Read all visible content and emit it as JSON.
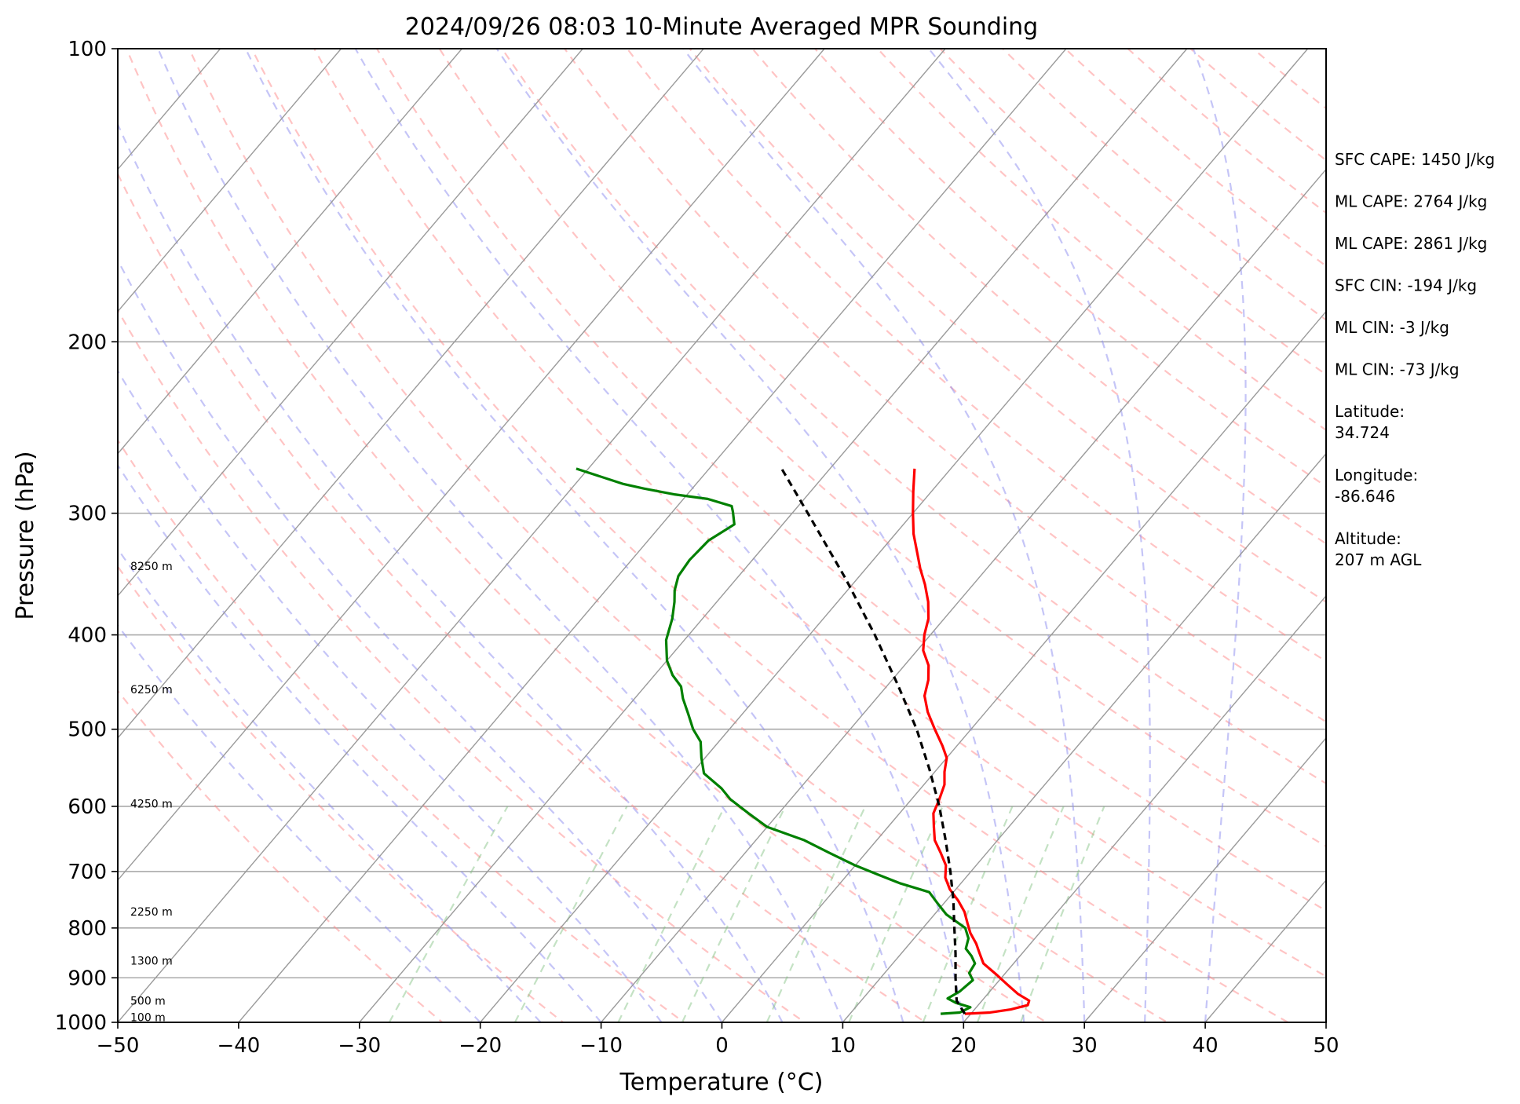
{
  "chart_data": {
    "type": "line",
    "subtype": "skew-T log-P",
    "title": "2024/09/26 08:03 10-Minute Averaged MPR Sounding",
    "xlabel": "Temperature (°C)",
    "ylabel": "Pressure (hPa)",
    "xlim": [
      -50,
      50
    ],
    "ylim": [
      1000,
      100
    ],
    "y_scale": "log",
    "x_ticks": [
      -50,
      -40,
      -30,
      -20,
      -10,
      0,
      10,
      20,
      30,
      40,
      50
    ],
    "x_tick_labels": [
      "−50",
      "−40",
      "−30",
      "−20",
      "−10",
      "0",
      "10",
      "20",
      "30",
      "40",
      "50"
    ],
    "y_ticks": [
      100,
      200,
      300,
      400,
      500,
      600,
      700,
      800,
      900,
      1000
    ],
    "y_tick_labels": [
      "100",
      "200",
      "300",
      "400",
      "500",
      "600",
      "700",
      "800",
      "900",
      "1000"
    ],
    "grid": "horizontal isobars",
    "skew_factor": 0.85,
    "reference_lines": {
      "isotherms_c": [
        -160,
        -150,
        -140,
        -130,
        -120,
        -110,
        -100,
        -90,
        -80,
        -70,
        -60,
        -50,
        -40,
        -30,
        -20,
        -10,
        0,
        10,
        20,
        30,
        40,
        50
      ],
      "dry_adiabats_theta_k": [
        250,
        260,
        270,
        280,
        290,
        300,
        310,
        320,
        330,
        340,
        350,
        360,
        370,
        380,
        390,
        400,
        410,
        420,
        430,
        440,
        450,
        460,
        470,
        480
      ],
      "moist_adiabats_start_c_at_1000": [
        -20,
        -15,
        -10,
        -5,
        0,
        5,
        10,
        15,
        20,
        25,
        30,
        35,
        40
      ],
      "mixing_ratio_lines_gkg": [
        0.4,
        1,
        2,
        3,
        5,
        8,
        12,
        16,
        20
      ]
    },
    "series": [
      {
        "name": "",
        "role": "temperature",
        "color": "#ff0000",
        "points": [
          [
            980,
            19.5
          ],
          [
            977,
            21.5
          ],
          [
            970,
            23.0
          ],
          [
            960,
            24.1
          ],
          [
            950,
            23.9
          ],
          [
            935,
            22.5
          ],
          [
            915,
            21.0
          ],
          [
            895,
            19.5
          ],
          [
            870,
            17.5
          ],
          [
            850,
            16.5
          ],
          [
            830,
            15.5
          ],
          [
            810,
            14.3
          ],
          [
            790,
            13.3
          ],
          [
            770,
            12.3
          ],
          [
            750,
            11.0
          ],
          [
            730,
            9.5
          ],
          [
            710,
            8.3
          ],
          [
            690,
            7.5
          ],
          [
            670,
            6.2
          ],
          [
            650,
            4.8
          ],
          [
            630,
            3.8
          ],
          [
            610,
            2.8
          ],
          [
            590,
            2.3
          ],
          [
            570,
            1.7
          ],
          [
            553,
            0.8
          ],
          [
            535,
            0.0
          ],
          [
            520,
            -1.2
          ],
          [
            500,
            -3.0
          ],
          [
            480,
            -4.8
          ],
          [
            462,
            -6.2
          ],
          [
            445,
            -7.0
          ],
          [
            430,
            -8.0
          ],
          [
            415,
            -9.5
          ],
          [
            400,
            -10.5
          ],
          [
            385,
            -11.3
          ],
          [
            370,
            -12.5
          ],
          [
            355,
            -14.0
          ],
          [
            342,
            -15.5
          ],
          [
            330,
            -16.8
          ],
          [
            315,
            -18.5
          ],
          [
            300,
            -20.0
          ],
          [
            285,
            -21.5
          ],
          [
            270,
            -23.0
          ]
        ]
      },
      {
        "name": "",
        "role": "dewpoint",
        "color": "#008000",
        "points": [
          [
            980,
            17.5
          ],
          [
            977,
            19.0
          ],
          [
            965,
            19.5
          ],
          [
            955,
            18.0
          ],
          [
            945,
            17.0
          ],
          [
            930,
            17.5
          ],
          [
            905,
            17.8
          ],
          [
            890,
            17.0
          ],
          [
            870,
            16.8
          ],
          [
            855,
            16.0
          ],
          [
            840,
            15.0
          ],
          [
            820,
            14.5
          ],
          [
            800,
            13.5
          ],
          [
            775,
            11.0
          ],
          [
            755,
            9.5
          ],
          [
            735,
            8.0
          ],
          [
            720,
            5.0
          ],
          [
            705,
            2.5
          ],
          [
            690,
            0.0
          ],
          [
            670,
            -3.0
          ],
          [
            650,
            -6.0
          ],
          [
            630,
            -10.0
          ],
          [
            610,
            -12.5
          ],
          [
            590,
            -15.0
          ],
          [
            575,
            -16.5
          ],
          [
            555,
            -19.0
          ],
          [
            535,
            -20.3
          ],
          [
            515,
            -21.5
          ],
          [
            500,
            -23.0
          ],
          [
            482,
            -24.5
          ],
          [
            465,
            -26.0
          ],
          [
            452,
            -27.0
          ],
          [
            440,
            -28.5
          ],
          [
            425,
            -30.0
          ],
          [
            405,
            -31.5
          ],
          [
            385,
            -32.5
          ],
          [
            370,
            -33.5
          ],
          [
            360,
            -34.3
          ],
          [
            348,
            -35.0
          ],
          [
            335,
            -35.2
          ],
          [
            320,
            -35.0
          ],
          [
            308,
            -34.0
          ],
          [
            299,
            -35.0
          ],
          [
            295,
            -35.5
          ],
          [
            290,
            -38.0
          ],
          [
            287,
            -41.0
          ],
          [
            283,
            -44.0
          ],
          [
            280,
            -46.0
          ],
          [
            270,
            -51.0
          ]
        ]
      },
      {
        "name": "",
        "role": "parcel",
        "color": "#000000",
        "dashed": true,
        "points": [
          [
            980,
            19.5
          ],
          [
            950,
            17.9
          ],
          [
            900,
            16.2
          ],
          [
            850,
            14.5
          ],
          [
            800,
            12.6
          ],
          [
            750,
            10.6
          ],
          [
            700,
            8.3
          ],
          [
            650,
            5.7
          ],
          [
            600,
            2.8
          ],
          [
            550,
            -0.6
          ],
          [
            500,
            -4.5
          ],
          [
            450,
            -9.2
          ],
          [
            400,
            -14.6
          ],
          [
            350,
            -21.0
          ],
          [
            300,
            -28.7
          ],
          [
            270,
            -34.0
          ]
        ]
      }
    ],
    "height_labels": [
      {
        "text": "100 m",
        "p": 988
      },
      {
        "text": "500 m",
        "p": 950
      },
      {
        "text": "1300 m",
        "p": 864
      },
      {
        "text": "2250 m",
        "p": 770
      },
      {
        "text": "4250 m",
        "p": 596
      },
      {
        "text": "6250 m",
        "p": 455
      },
      {
        "text": "8250 m",
        "p": 340
      }
    ],
    "annotations": [
      "SFC CAPE: 1450 J/kg",
      "ML CAPE: 2764 J/kg",
      "ML CAPE: 2861 J/kg",
      "SFC CIN: -194 J/kg",
      "ML CIN: -3 J/kg",
      "ML CIN: -73 J/kg",
      "Latitude:\n34.724",
      "Longitude:\n-86.646",
      "Altitude:\n207 m AGL"
    ]
  },
  "colors": {
    "temperature": "#ff0000",
    "dewpoint": "#008000",
    "parcel": "#000000",
    "isotherm": "#9a9a9a",
    "isobar": "#aaaaaa",
    "dry_adiabat": "#ff8a8a",
    "moist_adiabat": "#8c8cf0",
    "mixing_ratio": "#7cbf7c"
  }
}
